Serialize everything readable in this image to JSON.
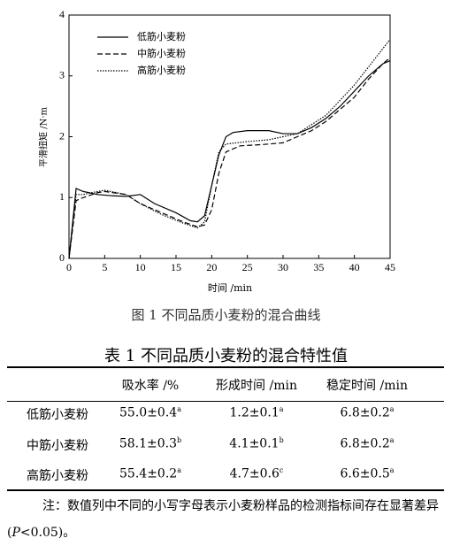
{
  "chart_data": {
    "type": "line",
    "xlabel": "时间 /min",
    "ylabel": "平滑扭矩 /N·m",
    "xlim": [
      0,
      45
    ],
    "ylim": [
      0,
      4
    ],
    "xticks": [
      0,
      5,
      10,
      15,
      20,
      25,
      30,
      35,
      40,
      45
    ],
    "yticks": [
      0,
      1,
      2,
      3,
      4
    ],
    "legend": "upper left",
    "series": [
      {
        "name": "低筋小麦粉",
        "color": "#000000",
        "style": "solid",
        "x": [
          0,
          1,
          2,
          4,
          6,
          8,
          10,
          12,
          15,
          17,
          18,
          19,
          20,
          21,
          22,
          23,
          25,
          28,
          30,
          32,
          34,
          36,
          38,
          40,
          42,
          44,
          45
        ],
        "values": [
          0,
          1.15,
          1.1,
          1.05,
          1.03,
          1.02,
          1.05,
          0.9,
          0.75,
          0.62,
          0.6,
          0.7,
          1.2,
          1.7,
          2.0,
          2.07,
          2.1,
          2.1,
          2.05,
          2.05,
          2.15,
          2.3,
          2.5,
          2.75,
          3.0,
          3.2,
          3.25
        ]
      },
      {
        "name": "中筋小麦粉",
        "color": "#000000",
        "style": "dashed",
        "x": [
          0,
          1,
          2,
          4,
          5,
          8,
          10,
          13,
          16,
          18,
          19,
          20,
          21,
          22,
          24,
          27,
          30,
          32,
          34,
          36,
          38,
          40,
          42,
          44,
          45
        ],
        "values": [
          0,
          0.95,
          1.0,
          1.08,
          1.1,
          1.05,
          0.9,
          0.75,
          0.6,
          0.52,
          0.55,
          0.8,
          1.4,
          1.75,
          1.85,
          1.87,
          1.9,
          2.0,
          2.1,
          2.25,
          2.45,
          2.65,
          2.95,
          3.2,
          3.3
        ]
      },
      {
        "name": "高筋小麦粉",
        "color": "#000000",
        "style": "dotted",
        "x": [
          0,
          1,
          2,
          4,
          5,
          8,
          10,
          13,
          16,
          18,
          19,
          20,
          21,
          22,
          25,
          28,
          30,
          32,
          34,
          36,
          38,
          40,
          42,
          44,
          45
        ],
        "values": [
          0,
          1.05,
          1.05,
          1.1,
          1.12,
          1.05,
          0.9,
          0.72,
          0.58,
          0.5,
          0.6,
          1.2,
          1.75,
          1.88,
          1.92,
          1.95,
          2.0,
          2.05,
          2.2,
          2.35,
          2.6,
          2.85,
          3.15,
          3.45,
          3.6
        ]
      }
    ]
  },
  "figure_caption": "图 1  不同品质小麦粉的混合曲线",
  "table": {
    "title": "表 1  不同品质小麦粉的混合特性值",
    "headers": [
      "吸水率 /%",
      "形成时间 /min",
      "稳定时间 /min"
    ],
    "rows": [
      {
        "name": "低筋小麦粉",
        "cells": [
          {
            "text": "55.0±0.4",
            "sup": "a"
          },
          {
            "text": "1.2±0.1",
            "sup": "a"
          },
          {
            "text": "6.8±0.2",
            "sup": "a"
          }
        ]
      },
      {
        "name": "中筋小麦粉",
        "cells": [
          {
            "text": "58.1±0.3",
            "sup": "b"
          },
          {
            "text": "4.1±0.1",
            "sup": "b"
          },
          {
            "text": "6.8±0.2",
            "sup": "a"
          }
        ]
      },
      {
        "name": "高筋小麦粉",
        "cells": [
          {
            "text": "55.4±0.2",
            "sup": "a"
          },
          {
            "text": "4.7±0.6",
            "sup": "c"
          },
          {
            "text": "6.6±0.5",
            "sup": "a"
          }
        ]
      }
    ]
  },
  "note": {
    "before": "注：数值列中不同的小写字母表示小麦粉样品的检测指标间存在显著差异(",
    "italic": "P",
    "after": "<0.05)。"
  }
}
